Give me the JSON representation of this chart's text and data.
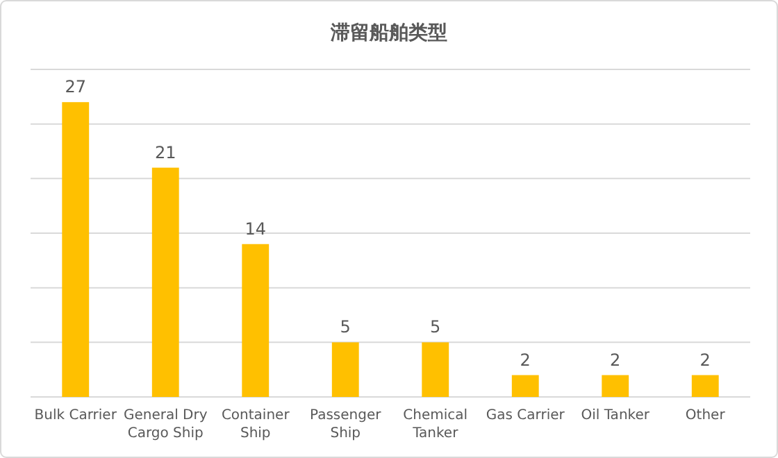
{
  "chart_data": {
    "type": "bar",
    "title": "滞留船舶类型",
    "categories": [
      "Bulk Carrier",
      "General Dry Cargo Ship",
      "Container Ship",
      "Passenger Ship",
      "Chemical Tanker",
      "Gas Carrier",
      "Oil Tanker",
      "Other"
    ],
    "values": [
      27,
      21,
      14,
      5,
      5,
      2,
      2,
      2
    ],
    "color": "#ffc000",
    "ylim": [
      0,
      30
    ],
    "yticks": [
      {
        "value": 0,
        "label": null
      },
      {
        "value": 5,
        "label": null
      },
      {
        "value": 10,
        "label": null
      },
      {
        "value": 15,
        "label": null
      },
      {
        "value": 20,
        "label": null
      },
      {
        "value": 25,
        "label": null
      },
      {
        "value": 30,
        "label": null
      }
    ],
    "grid": "y",
    "tick_labels": "x",
    "data_labels": true
  }
}
